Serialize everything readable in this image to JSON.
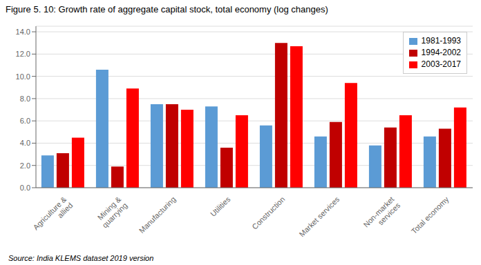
{
  "chart_data": {
    "type": "bar",
    "title": "Figure 5. 10: Growth rate of aggregate capital stock, total economy (log changes)",
    "annotations": [
      "Source: India KLEMS dataset 2019 version"
    ],
    "categories": [
      "Agriculture &\nallied",
      "Mining &\nquarrying",
      "Manufacturing",
      "Utilities",
      "Construction",
      "Market services",
      "Non-market\nservices",
      "Total economy"
    ],
    "series": [
      {
        "name": "1981-1993",
        "color": "#5B9BD5",
        "values": [
          2.9,
          10.6,
          7.5,
          7.3,
          5.6,
          4.6,
          3.8,
          4.6
        ]
      },
      {
        "name": "1994-2002",
        "color": "#C00000",
        "values": [
          3.1,
          1.9,
          7.5,
          3.6,
          13.0,
          5.9,
          5.4,
          5.3
        ]
      },
      {
        "name": "2003-2017",
        "color": "#FF0000",
        "values": [
          4.5,
          8.9,
          7.0,
          6.5,
          12.7,
          9.4,
          6.5,
          7.2
        ]
      }
    ],
    "ylim": [
      0,
      14.5
    ],
    "yticks": [
      {
        "value": 0,
        "label": "0.0"
      },
      {
        "value": 2,
        "label": "2.0"
      },
      {
        "value": 4,
        "label": "4.0"
      },
      {
        "value": 6,
        "label": "6.0"
      },
      {
        "value": 8,
        "label": "8.0"
      },
      {
        "value": 10,
        "label": "10.0"
      },
      {
        "value": 12,
        "label": "12.0"
      },
      {
        "value": 14,
        "label": "14.0"
      }
    ],
    "grid": true,
    "legend": "upper right"
  }
}
